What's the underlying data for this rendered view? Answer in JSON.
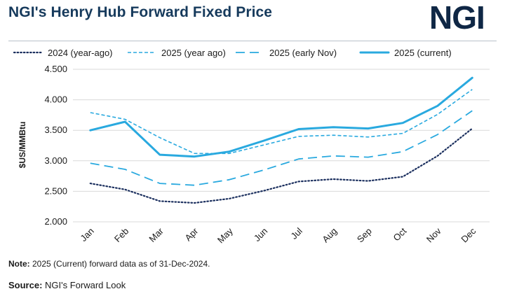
{
  "title": "NGI's Henry Hub Forward Fixed Price",
  "logo": "NGI",
  "note": {
    "label": "Note:",
    "text": " 2025 (Current) forward data as of 31-Dec-2024."
  },
  "source": {
    "label": "Source:",
    "text": " NGI's Forward Look"
  },
  "colors": {
    "dark_navy": "#1b2f5e",
    "light_blue": "#29a9df",
    "title": "#163a5c",
    "gridline": "#d9d9d9"
  },
  "chart_data": {
    "type": "line",
    "ylabel": "$US/MMBtu",
    "ylim": [
      2.0,
      4.5
    ],
    "yticks": [
      "2.000",
      "2.500",
      "3.000",
      "3.500",
      "4.000",
      "4.500"
    ],
    "categories": [
      "Jan",
      "Feb",
      "Mar",
      "Apr",
      "May",
      "Jun",
      "Jul",
      "Aug",
      "Sep",
      "Oct",
      "Nov",
      "Dec"
    ],
    "legend_position": "top",
    "grid": "horizontal",
    "series": [
      {
        "name": "2024 (year-ago)",
        "style": "dotted",
        "color": "#1b2f5e",
        "values": [
          2.63,
          2.53,
          2.34,
          2.31,
          2.38,
          2.51,
          2.66,
          2.7,
          2.67,
          2.74,
          3.08,
          3.53
        ]
      },
      {
        "name": "2025 (year ago)",
        "style": "short-dash",
        "color": "#29a9df",
        "values": [
          3.79,
          3.68,
          3.38,
          3.12,
          3.12,
          3.26,
          3.4,
          3.42,
          3.39,
          3.45,
          3.76,
          4.17
        ]
      },
      {
        "name": "2025 (early Nov)",
        "style": "long-dash",
        "color": "#29a9df",
        "values": [
          2.96,
          2.86,
          2.63,
          2.6,
          2.69,
          2.85,
          3.03,
          3.08,
          3.06,
          3.15,
          3.43,
          3.82
        ]
      },
      {
        "name": "2025 (current)",
        "style": "solid",
        "color": "#29a9df",
        "values": [
          3.5,
          3.64,
          3.1,
          3.07,
          3.15,
          3.33,
          3.52,
          3.55,
          3.53,
          3.62,
          3.9,
          4.36
        ]
      }
    ]
  }
}
